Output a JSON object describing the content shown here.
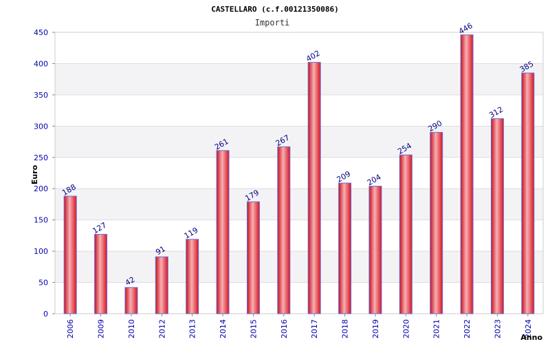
{
  "chart_data": {
    "type": "bar",
    "title": "CASTELLARO (c.f.00121350086)",
    "subtitle": "Importi",
    "xlabel": "Anno",
    "ylabel": "Euro",
    "categories": [
      "2006",
      "2009",
      "2010",
      "2012",
      "2013",
      "2014",
      "2015",
      "2016",
      "2017",
      "2018",
      "2019",
      "2020",
      "2021",
      "2022",
      "2023",
      "2024"
    ],
    "values": [
      188,
      127,
      42,
      91,
      119,
      261,
      179,
      267,
      402,
      209,
      204,
      254,
      290,
      446,
      312,
      385
    ],
    "ylim": [
      0,
      450
    ],
    "yticks": [
      0,
      50,
      100,
      150,
      200,
      250,
      300,
      350,
      400,
      450
    ],
    "grid": true,
    "legend": "none",
    "colors": {
      "bar": "#e8242c",
      "bar_highlight": "#f7b0b4",
      "bar_edge": "#6a6adc",
      "band": "#f3f3f5",
      "gridline": "#dddddd",
      "tick_text": "#0000aa",
      "label_text": "#000080"
    }
  }
}
